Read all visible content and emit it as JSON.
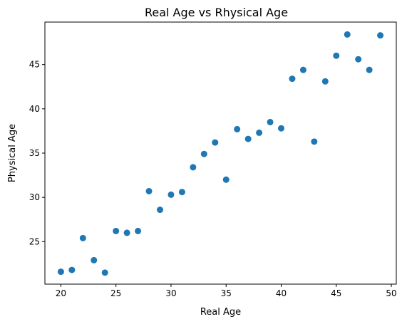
{
  "chart_data": {
    "type": "scatter",
    "title": "Real Age vs Rhysical Age",
    "xlabel": "Real Age",
    "ylabel": "Physical Age",
    "xlim": [
      18.55,
      50.45
    ],
    "ylim": [
      20.2,
      49.8
    ],
    "xticks": [
      20,
      25,
      30,
      35,
      40,
      45,
      50
    ],
    "yticks": [
      25,
      30,
      35,
      40,
      45
    ],
    "grid": false,
    "marker_color": "#1f77b4",
    "x": [
      20,
      21,
      22,
      23,
      24,
      25,
      26,
      27,
      28,
      29,
      30,
      31,
      32,
      33,
      34,
      35,
      36,
      37,
      38,
      39,
      40,
      41,
      42,
      43,
      44,
      45,
      46,
      47,
      48,
      49
    ],
    "y": [
      21.6,
      21.8,
      25.4,
      22.9,
      21.5,
      26.2,
      26.0,
      26.2,
      30.7,
      28.6,
      30.3,
      30.6,
      33.4,
      34.9,
      36.2,
      32.0,
      37.7,
      36.6,
      37.3,
      38.5,
      37.8,
      43.4,
      44.4,
      36.3,
      43.1,
      46.0,
      48.4,
      45.6,
      44.4,
      48.3
    ]
  }
}
